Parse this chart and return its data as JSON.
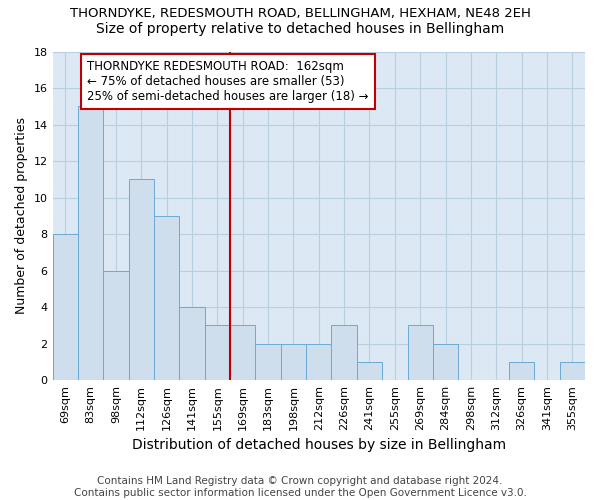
{
  "title": "THORNDYKE, REDESMOUTH ROAD, BELLINGHAM, HEXHAM, NE48 2EH",
  "subtitle": "Size of property relative to detached houses in Bellingham",
  "xlabel": "Distribution of detached houses by size in Bellingham",
  "ylabel": "Number of detached properties",
  "bar_labels": [
    "69sqm",
    "83sqm",
    "98sqm",
    "112sqm",
    "126sqm",
    "141sqm",
    "155sqm",
    "169sqm",
    "183sqm",
    "198sqm",
    "212sqm",
    "226sqm",
    "241sqm",
    "255sqm",
    "269sqm",
    "284sqm",
    "298sqm",
    "312sqm",
    "326sqm",
    "341sqm",
    "355sqm"
  ],
  "bar_values": [
    8,
    15,
    6,
    11,
    9,
    4,
    3,
    3,
    2,
    2,
    2,
    3,
    1,
    0,
    3,
    2,
    0,
    0,
    1,
    0,
    1
  ],
  "bar_color": "#cfdeed",
  "bar_edge_color": "#6aaad4",
  "plot_bg_color": "#dce9f5",
  "fig_bg_color": "#ffffff",
  "grid_color": "#b8cfe0",
  "vline_x_idx": 7,
  "vline_color": "#c00000",
  "annotation_text": "THORNDYKE REDESMOUTH ROAD:  162sqm\n← 75% of detached houses are smaller (53)\n25% of semi-detached houses are larger (18) →",
  "annotation_box_facecolor": "#ffffff",
  "annotation_box_edgecolor": "#c00000",
  "ylim": [
    0,
    18
  ],
  "yticks": [
    0,
    2,
    4,
    6,
    8,
    10,
    12,
    14,
    16,
    18
  ],
  "footer": "Contains HM Land Registry data © Crown copyright and database right 2024.\nContains public sector information licensed under the Open Government Licence v3.0.",
  "title_fontsize": 9.5,
  "subtitle_fontsize": 10,
  "xlabel_fontsize": 10,
  "ylabel_fontsize": 9,
  "tick_fontsize": 8,
  "annotation_fontsize": 8.5,
  "footer_fontsize": 7.5
}
